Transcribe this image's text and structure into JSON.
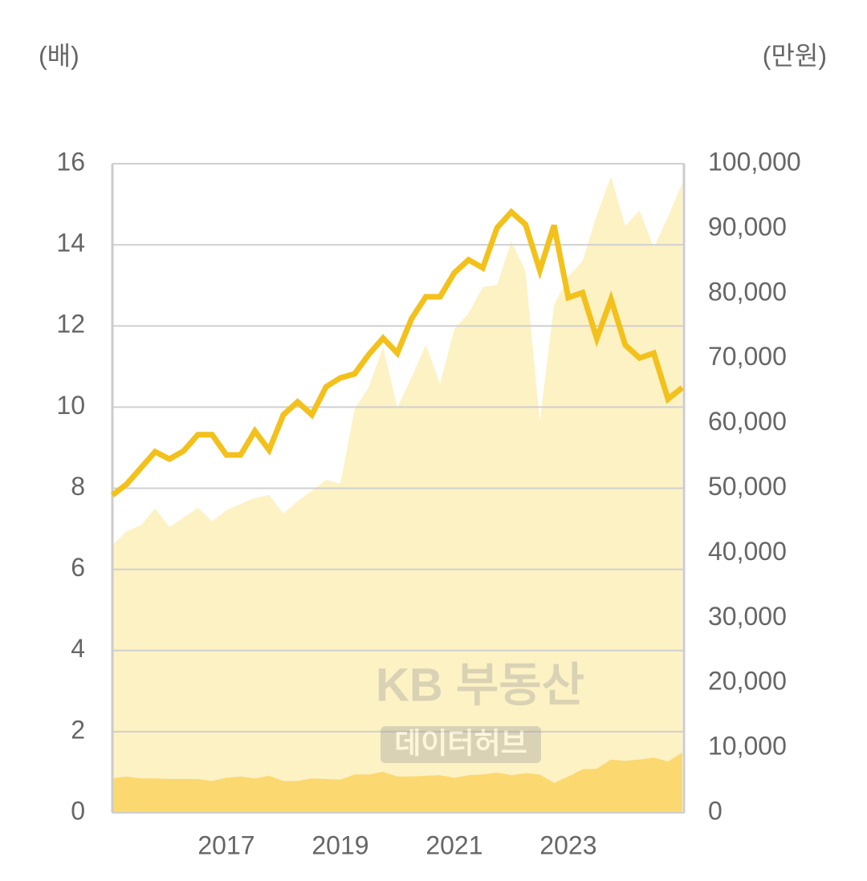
{
  "chart_data": {
    "type": "line-area",
    "y_label": "(배)",
    "y2_label": "(만원)",
    "watermark": [
      "KB 부동산",
      "데이터허브"
    ],
    "x": [
      2015,
      2015.25,
      2015.5,
      2015.75,
      2016,
      2016.25,
      2016.5,
      2016.75,
      2017,
      2017.25,
      2017.5,
      2017.75,
      2018,
      2018.25,
      2018.5,
      2018.75,
      2019,
      2019.25,
      2019.5,
      2019.75,
      2020,
      2020.25,
      2020.5,
      2020.75,
      2021,
      2021.25,
      2021.5,
      2021.75,
      2022,
      2022.25,
      2022.5,
      2022.75,
      2023,
      2023.25,
      2023.5,
      2023.75,
      2024,
      2024.25,
      2024.5,
      2024.75,
      2025
    ],
    "xlim": [
      2015,
      2025.03
    ],
    "xticks": [
      2017,
      2019,
      2021,
      2023
    ],
    "ylim": [
      0,
      16
    ],
    "yticks": [
      0,
      2,
      4,
      6,
      8,
      10,
      12,
      14,
      16
    ],
    "y2lim": [
      0,
      100000
    ],
    "y2ticks": [
      0,
      {
        "value": 10000,
        "label": "10,000"
      },
      {
        "value": 20000,
        "label": "20,000"
      },
      {
        "value": 30000,
        "label": "30,000"
      },
      {
        "value": 40000,
        "label": "40,000"
      },
      {
        "value": 50000,
        "label": "50,000"
      },
      {
        "value": 60000,
        "label": "60,000"
      },
      {
        "value": 70000,
        "label": "70,000"
      },
      {
        "value": 80000,
        "label": "80,000"
      },
      {
        "value": 90000,
        "label": "90,000"
      },
      {
        "value": 100000,
        "label": "100,000"
      }
    ],
    "grid": true,
    "series": [
      {
        "type": "area",
        "axis": "y2",
        "color": "#fdf2c4",
        "values": [
          41200,
          43400,
          44300,
          46900,
          44000,
          45500,
          47000,
          44900,
          46600,
          47600,
          48500,
          49000,
          46100,
          48000,
          49600,
          51300,
          50700,
          62200,
          65600,
          71800,
          62400,
          67100,
          72100,
          66100,
          74500,
          77000,
          81000,
          81300,
          88100,
          83400,
          60300,
          78200,
          82600,
          85000,
          92100,
          98000,
          90400,
          92800,
          87100,
          91800,
          97000
        ]
      },
      {
        "type": "area",
        "axis": "y2",
        "color": "#fbd870",
        "values": [
          5300,
          5600,
          5300,
          5300,
          5200,
          5200,
          5200,
          4900,
          5400,
          5600,
          5300,
          5700,
          4900,
          4900,
          5300,
          5200,
          5100,
          5900,
          5900,
          6300,
          5600,
          5600,
          5700,
          5800,
          5400,
          5800,
          5900,
          6200,
          5800,
          6100,
          5900,
          4600,
          5600,
          6700,
          6800,
          8200,
          8000,
          8200,
          8500,
          7900,
          9300
        ]
      },
      {
        "type": "line",
        "axis": "y",
        "color": "#f3c11b",
        "values": [
          7.83,
          8.1,
          8.5,
          8.9,
          8.72,
          8.92,
          9.32,
          9.32,
          8.82,
          8.82,
          9.41,
          8.94,
          9.81,
          10.13,
          9.81,
          10.5,
          10.72,
          10.82,
          11.3,
          11.7,
          11.33,
          12.18,
          12.72,
          12.72,
          13.31,
          13.63,
          13.43,
          14.42,
          14.81,
          14.5,
          13.37,
          14.48,
          12.7,
          12.82,
          11.69,
          12.66,
          11.53,
          11.21,
          11.33,
          10.2,
          10.48
        ]
      }
    ]
  }
}
